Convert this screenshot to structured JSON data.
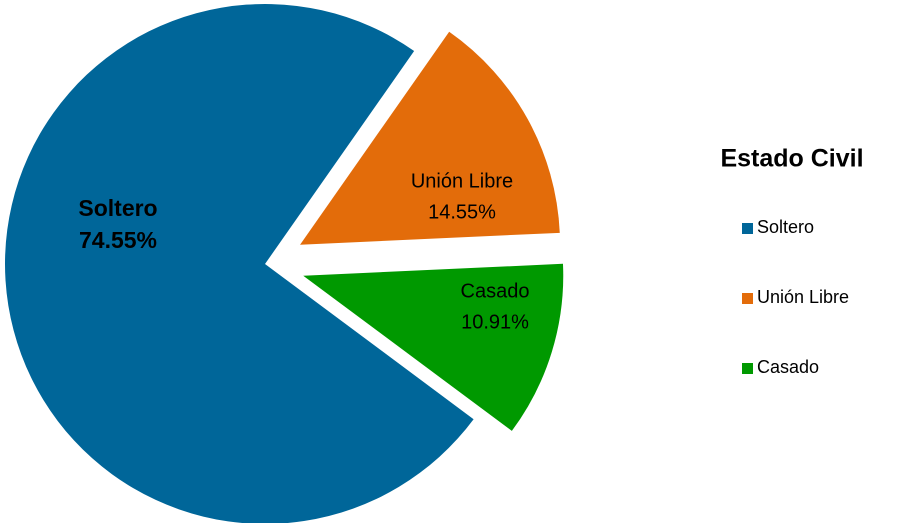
{
  "chart_data": {
    "type": "pie",
    "legend_title": "Estado Civil",
    "categories": [
      "Unión Libre",
      "Casado",
      "Soltero"
    ],
    "values": [
      14.55,
      10.91,
      74.55
    ],
    "value_labels": [
      "14.55%",
      "10.91%",
      "74.55%"
    ],
    "colors": [
      "#e36c0a",
      "#009900",
      "#006699"
    ],
    "exploded": [
      true,
      true,
      false
    ],
    "legend": "right"
  }
}
